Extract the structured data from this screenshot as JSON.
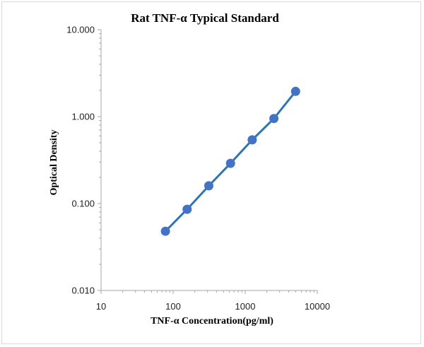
{
  "chart_data": {
    "type": "scatter",
    "title": "Rat TNF-α Typical Standard",
    "xlabel": "TNF-α Concentration(pg/ml)",
    "ylabel": "Optical Density",
    "x_scale": "log",
    "y_scale": "log",
    "xlim": [
      10,
      10000
    ],
    "ylim": [
      0.01,
      10
    ],
    "x_tick_labels": [
      "10",
      "100",
      "1000",
      "10000"
    ],
    "y_tick_labels": [
      "10.000",
      "1.000",
      "0.100",
      "0.010"
    ],
    "grid": false,
    "series": [
      {
        "x": [
          78.125,
          156.25,
          312.5,
          625,
          1250,
          2500,
          5000
        ],
        "y": [
          0.048,
          0.086,
          0.16,
          0.29,
          0.54,
          0.95,
          1.95
        ]
      }
    ],
    "colors": {
      "line": "#2e75b6",
      "marker": "#4472c4",
      "axis": "#a6a6a6"
    }
  }
}
